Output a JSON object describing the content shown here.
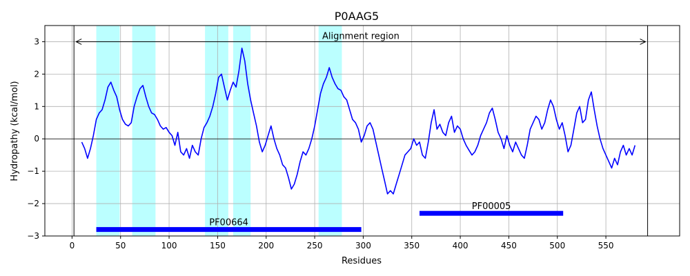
{
  "chart_data": {
    "type": "line",
    "title": "P0AAG5",
    "xlabel": "Residues",
    "ylabel": "Hydropathy (kcal/mol)",
    "xlim": [
      -28,
      626
    ],
    "ylim": [
      -3,
      3.5
    ],
    "xticks": [
      0,
      50,
      100,
      150,
      200,
      250,
      300,
      350,
      400,
      450,
      500,
      550
    ],
    "yticks": [
      -3,
      -2,
      -1,
      0,
      1,
      2,
      3
    ],
    "grid": true,
    "line_color": "#0000ff",
    "highlight_color": "#bbffff",
    "domain_color": "#0000ff",
    "highlight_regions": [
      [
        25,
        49
      ],
      [
        62,
        86
      ],
      [
        137,
        161
      ],
      [
        166,
        184
      ],
      [
        254,
        278
      ]
    ],
    "alignment_region": {
      "label": "Alignment region",
      "start": 2,
      "end": 593,
      "y": 3
    },
    "domains": [
      {
        "label": "PF00664",
        "start": 25,
        "end": 298,
        "y": -2.8
      },
      {
        "label": "PF00005",
        "start": 358,
        "end": 506,
        "y": -2.3
      }
    ],
    "series": [
      {
        "points": [
          [
            10,
            -0.1
          ],
          [
            13,
            -0.3
          ],
          [
            16,
            -0.6
          ],
          [
            19,
            -0.3
          ],
          [
            22,
            0.1
          ],
          [
            25,
            0.6
          ],
          [
            28,
            0.8
          ],
          [
            31,
            0.9
          ],
          [
            34,
            1.2
          ],
          [
            37,
            1.6
          ],
          [
            40,
            1.75
          ],
          [
            43,
            1.5
          ],
          [
            46,
            1.3
          ],
          [
            49,
            0.9
          ],
          [
            52,
            0.6
          ],
          [
            55,
            0.45
          ],
          [
            58,
            0.4
          ],
          [
            61,
            0.5
          ],
          [
            64,
            1.0
          ],
          [
            67,
            1.3
          ],
          [
            70,
            1.55
          ],
          [
            73,
            1.65
          ],
          [
            76,
            1.3
          ],
          [
            79,
            1.0
          ],
          [
            82,
            0.8
          ],
          [
            85,
            0.75
          ],
          [
            88,
            0.6
          ],
          [
            91,
            0.4
          ],
          [
            94,
            0.3
          ],
          [
            97,
            0.35
          ],
          [
            100,
            0.2
          ],
          [
            103,
            0.1
          ],
          [
            106,
            -0.2
          ],
          [
            109,
            0.2
          ],
          [
            112,
            -0.4
          ],
          [
            115,
            -0.5
          ],
          [
            118,
            -0.3
          ],
          [
            121,
            -0.6
          ],
          [
            124,
            -0.2
          ],
          [
            127,
            -0.4
          ],
          [
            130,
            -0.5
          ],
          [
            133,
            0.0
          ],
          [
            136,
            0.35
          ],
          [
            139,
            0.5
          ],
          [
            142,
            0.7
          ],
          [
            145,
            1.0
          ],
          [
            148,
            1.4
          ],
          [
            151,
            1.9
          ],
          [
            154,
            2.0
          ],
          [
            157,
            1.6
          ],
          [
            160,
            1.2
          ],
          [
            163,
            1.5
          ],
          [
            166,
            1.75
          ],
          [
            169,
            1.6
          ],
          [
            172,
            2.1
          ],
          [
            175,
            2.8
          ],
          [
            178,
            2.4
          ],
          [
            181,
            1.7
          ],
          [
            184,
            1.2
          ],
          [
            187,
            0.8
          ],
          [
            190,
            0.4
          ],
          [
            193,
            -0.1
          ],
          [
            196,
            -0.4
          ],
          [
            199,
            -0.2
          ],
          [
            202,
            0.1
          ],
          [
            205,
            0.4
          ],
          [
            208,
            0.0
          ],
          [
            211,
            -0.3
          ],
          [
            214,
            -0.5
          ],
          [
            217,
            -0.8
          ],
          [
            220,
            -0.9
          ],
          [
            223,
            -1.2
          ],
          [
            226,
            -1.55
          ],
          [
            229,
            -1.4
          ],
          [
            232,
            -1.1
          ],
          [
            235,
            -0.7
          ],
          [
            238,
            -0.4
          ],
          [
            241,
            -0.5
          ],
          [
            244,
            -0.3
          ],
          [
            247,
            0.0
          ],
          [
            250,
            0.4
          ],
          [
            253,
            0.9
          ],
          [
            256,
            1.4
          ],
          [
            259,
            1.7
          ],
          [
            262,
            1.9
          ],
          [
            265,
            2.2
          ],
          [
            268,
            1.9
          ],
          [
            271,
            1.7
          ],
          [
            274,
            1.55
          ],
          [
            277,
            1.5
          ],
          [
            280,
            1.3
          ],
          [
            283,
            1.2
          ],
          [
            286,
            0.9
          ],
          [
            289,
            0.6
          ],
          [
            292,
            0.5
          ],
          [
            295,
            0.3
          ],
          [
            298,
            -0.1
          ],
          [
            301,
            0.1
          ],
          [
            304,
            0.4
          ],
          [
            307,
            0.5
          ],
          [
            310,
            0.3
          ],
          [
            313,
            -0.1
          ],
          [
            316,
            -0.5
          ],
          [
            319,
            -0.9
          ],
          [
            322,
            -1.3
          ],
          [
            325,
            -1.7
          ],
          [
            328,
            -1.6
          ],
          [
            331,
            -1.7
          ],
          [
            334,
            -1.4
          ],
          [
            337,
            -1.1
          ],
          [
            340,
            -0.8
          ],
          [
            343,
            -0.5
          ],
          [
            346,
            -0.4
          ],
          [
            349,
            -0.3
          ],
          [
            352,
            0.0
          ],
          [
            355,
            -0.2
          ],
          [
            358,
            -0.1
          ],
          [
            361,
            -0.5
          ],
          [
            364,
            -0.6
          ],
          [
            367,
            -0.1
          ],
          [
            370,
            0.5
          ],
          [
            373,
            0.9
          ],
          [
            376,
            0.3
          ],
          [
            379,
            0.45
          ],
          [
            382,
            0.2
          ],
          [
            385,
            0.1
          ],
          [
            388,
            0.5
          ],
          [
            391,
            0.7
          ],
          [
            394,
            0.2
          ],
          [
            397,
            0.4
          ],
          [
            400,
            0.3
          ],
          [
            403,
            0.0
          ],
          [
            406,
            -0.2
          ],
          [
            409,
            -0.35
          ],
          [
            412,
            -0.5
          ],
          [
            415,
            -0.4
          ],
          [
            418,
            -0.2
          ],
          [
            421,
            0.1
          ],
          [
            424,
            0.3
          ],
          [
            427,
            0.5
          ],
          [
            430,
            0.8
          ],
          [
            433,
            0.95
          ],
          [
            436,
            0.6
          ],
          [
            439,
            0.2
          ],
          [
            442,
            0.0
          ],
          [
            445,
            -0.3
          ],
          [
            448,
            0.1
          ],
          [
            451,
            -0.2
          ],
          [
            454,
            -0.4
          ],
          [
            457,
            -0.1
          ],
          [
            460,
            -0.3
          ],
          [
            463,
            -0.5
          ],
          [
            466,
            -0.6
          ],
          [
            469,
            -0.2
          ],
          [
            472,
            0.3
          ],
          [
            475,
            0.5
          ],
          [
            478,
            0.7
          ],
          [
            481,
            0.6
          ],
          [
            484,
            0.3
          ],
          [
            487,
            0.5
          ],
          [
            490,
            0.9
          ],
          [
            493,
            1.2
          ],
          [
            496,
            1.0
          ],
          [
            499,
            0.6
          ],
          [
            502,
            0.3
          ],
          [
            505,
            0.5
          ],
          [
            508,
            0.1
          ],
          [
            511,
            -0.4
          ],
          [
            514,
            -0.2
          ],
          [
            517,
            0.3
          ],
          [
            520,
            0.8
          ],
          [
            523,
            1.0
          ],
          [
            526,
            0.5
          ],
          [
            529,
            0.6
          ],
          [
            532,
            1.2
          ],
          [
            535,
            1.45
          ],
          [
            538,
            0.9
          ],
          [
            541,
            0.4
          ],
          [
            544,
            0.0
          ],
          [
            547,
            -0.3
          ],
          [
            550,
            -0.5
          ],
          [
            553,
            -0.7
          ],
          [
            556,
            -0.9
          ],
          [
            559,
            -0.6
          ],
          [
            562,
            -0.8
          ],
          [
            565,
            -0.4
          ],
          [
            568,
            -0.2
          ],
          [
            571,
            -0.5
          ],
          [
            574,
            -0.3
          ],
          [
            577,
            -0.5
          ],
          [
            580,
            -0.2
          ]
        ]
      }
    ]
  }
}
